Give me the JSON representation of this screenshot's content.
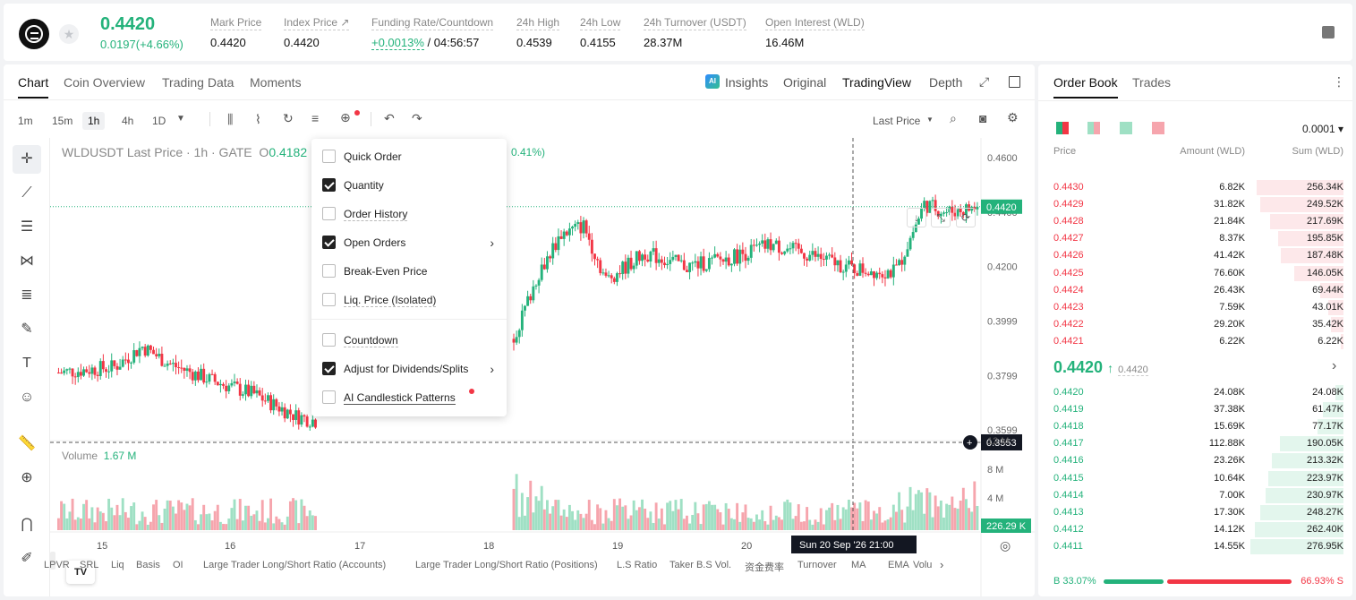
{
  "header": {
    "last_price": "0.4420",
    "change": "0.0197(+4.66%)",
    "stats": [
      {
        "label": "Mark Price",
        "value": "0.4420"
      },
      {
        "label": "Index Price ↗",
        "value": "0.4420"
      },
      {
        "label": "Funding Rate/Countdown",
        "value_rate": "+0.0013%",
        "value_countdown": " / 04:56:57"
      },
      {
        "label": "24h High",
        "value": "0.4539"
      },
      {
        "label": "24h Low",
        "value": "0.4155"
      },
      {
        "label": "24h Turnover (USDT)",
        "value": "28.37M"
      },
      {
        "label": "Open Interest (WLD)",
        "value": "16.46M"
      }
    ]
  },
  "chart_tabs": [
    "Chart",
    "Coin Overview",
    "Trading Data",
    "Moments"
  ],
  "view_tabs": {
    "insights": "Insights",
    "original": "Original",
    "tradingview": "TradingView",
    "depth": "Depth",
    "ai_badge": "AI"
  },
  "timeframes": [
    "1m",
    "15m",
    "1h",
    "4h",
    "1D"
  ],
  "price_type": "Last Price",
  "chart": {
    "title": "WLDUSDT Last Price · 1h · GATE",
    "o_label": "O",
    "o_value": "0.4182",
    "change_frag": "0.41%)",
    "price_axis": [
      "0.4600",
      "0.4400",
      "0.4200",
      "0.3999",
      "0.3799",
      "0.3599"
    ],
    "current_price": "0.4420",
    "cursor_price": "0.3553",
    "volume_label": "Volume",
    "volume_value": "1.67 M",
    "vol_axis": [
      "12 M",
      "8 M",
      "4 M"
    ],
    "vol_tag": "226.29 K",
    "x_labels": [
      "15",
      "16",
      "17",
      "18",
      "19",
      "20"
    ],
    "cursor_time": "Sun 20 Sep '26   21:00",
    "logo": "TV"
  },
  "chart_data": {
    "type": "candlestick",
    "symbol": "WLDUSDT",
    "interval": "1h",
    "x_ticks": [
      "15",
      "16",
      "17",
      "18",
      "19",
      "20"
    ],
    "ylim": [
      0.3553,
      0.46
    ],
    "current": 0.442,
    "volume_current": "1.67 M"
  },
  "context_menu": [
    {
      "label": "Quick Order",
      "checked": false
    },
    {
      "label": "Quantity",
      "checked": true
    },
    {
      "label": "Order History",
      "checked": false
    },
    {
      "label": "Open Orders",
      "checked": true,
      "submenu": true
    },
    {
      "label": "Break-Even Price",
      "checked": false
    },
    {
      "label": "Liq. Price (Isolated)",
      "checked": false
    },
    {
      "label": "Countdown",
      "checked": false
    },
    {
      "label": "Adjust for Dividends/Splits",
      "checked": true,
      "submenu": true
    },
    {
      "label": "AI Candlestick Patterns",
      "checked": false
    }
  ],
  "indicators": [
    "LPVR",
    "SRL",
    "Liq",
    "Basis",
    "OI",
    "Large Trader Long/Short Ratio (Accounts)",
    "Large Trader Long/Short Ratio (Positions)",
    "L.S Ratio",
    "Taker B.S Vol.",
    "资金费率",
    "Turnover",
    "MA",
    "EMA",
    "Volu"
  ],
  "order_book": {
    "tabs": [
      "Order Book",
      "Trades"
    ],
    "precision": "0.0001",
    "cols": [
      "Price",
      "Amount (WLD)",
      "Sum (WLD)"
    ],
    "asks": [
      {
        "p": "0.4430",
        "a": "6.82K",
        "s": "256.34K",
        "f": 0.92
      },
      {
        "p": "0.4429",
        "a": "31.82K",
        "s": "249.52K",
        "f": 0.89
      },
      {
        "p": "0.4428",
        "a": "21.84K",
        "s": "217.69K",
        "f": 0.78
      },
      {
        "p": "0.4427",
        "a": "8.37K",
        "s": "195.85K",
        "f": 0.7
      },
      {
        "p": "0.4426",
        "a": "41.42K",
        "s": "187.48K",
        "f": 0.67
      },
      {
        "p": "0.4425",
        "a": "76.60K",
        "s": "146.05K",
        "f": 0.52
      },
      {
        "p": "0.4424",
        "a": "26.43K",
        "s": "69.44K",
        "f": 0.25
      },
      {
        "p": "0.4423",
        "a": "7.59K",
        "s": "43.01K",
        "f": 0.16
      },
      {
        "p": "0.4422",
        "a": "29.20K",
        "s": "35.42K",
        "f": 0.13
      },
      {
        "p": "0.4421",
        "a": "6.22K",
        "s": "6.22K",
        "f": 0.03
      }
    ],
    "mid": "0.4420",
    "mid_arrow": "↑",
    "mid_ref": "0.4420",
    "bids": [
      {
        "p": "0.4420",
        "a": "24.08K",
        "s": "24.08K",
        "f": 0.09
      },
      {
        "p": "0.4419",
        "a": "37.38K",
        "s": "61.47K",
        "f": 0.22
      },
      {
        "p": "0.4418",
        "a": "15.69K",
        "s": "77.17K",
        "f": 0.28
      },
      {
        "p": "0.4417",
        "a": "112.88K",
        "s": "190.05K",
        "f": 0.68
      },
      {
        "p": "0.4416",
        "a": "23.26K",
        "s": "213.32K",
        "f": 0.76
      },
      {
        "p": "0.4415",
        "a": "10.64K",
        "s": "223.97K",
        "f": 0.8
      },
      {
        "p": "0.4414",
        "a": "7.00K",
        "s": "230.97K",
        "f": 0.83
      },
      {
        "p": "0.4413",
        "a": "17.30K",
        "s": "248.27K",
        "f": 0.89
      },
      {
        "p": "0.4412",
        "a": "14.12K",
        "s": "262.40K",
        "f": 0.94
      },
      {
        "p": "0.4411",
        "a": "14.55K",
        "s": "276.95K",
        "f": 0.99
      }
    ],
    "buy_ratio": "B 33.07%",
    "sell_ratio": "66.93% S",
    "buy_frac": 0.3307
  },
  "colors": {
    "up": "#24b27b",
    "down": "#f23645",
    "up_light": "#9fe0c4",
    "down_light": "#f6a5ad"
  }
}
